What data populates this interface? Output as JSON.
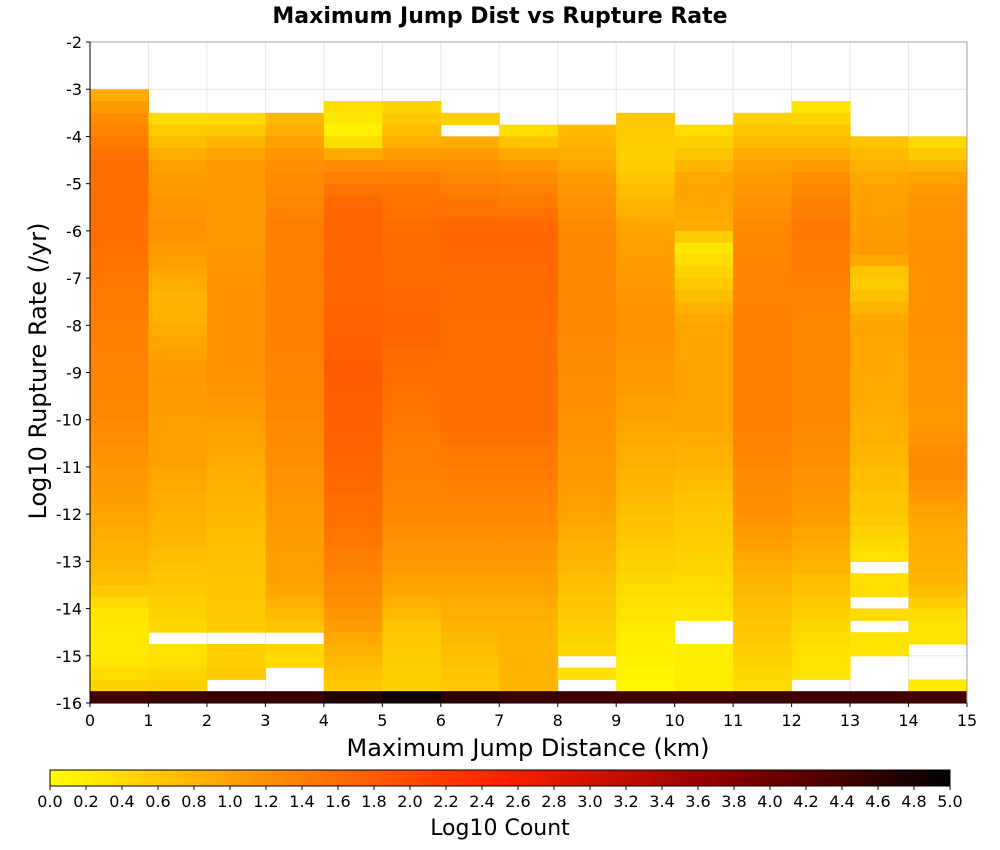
{
  "chart_data": {
    "type": "heatmap",
    "title": "Maximum Jump Dist vs Rupture Rate",
    "xlabel": "Maximum Jump Distance (km)",
    "ylabel": "Log10 Rupture Rate (/yr)",
    "xlim": [
      0,
      15
    ],
    "ylim": [
      -16,
      -2
    ],
    "x_ticks": [
      "0",
      "1",
      "2",
      "3",
      "4",
      "5",
      "6",
      "7",
      "8",
      "9",
      "10",
      "11",
      "12",
      "13",
      "14",
      "15"
    ],
    "y_ticks": [
      "-2",
      "-3",
      "-4",
      "-5",
      "-6",
      "-7",
      "-8",
      "-9",
      "-10",
      "-11",
      "-12",
      "-13",
      "-14",
      "-15",
      "-16"
    ],
    "x_bin_width": 1,
    "y_bin_width": 0.25,
    "grid": true,
    "colorbar": {
      "label": "Log10 Count",
      "range": [
        0,
        5
      ],
      "ticks": [
        "0.0",
        "0.2",
        "0.4",
        "0.6",
        "0.8",
        "1.0",
        "1.2",
        "1.4",
        "1.6",
        "1.8",
        "2.0",
        "2.2",
        "2.4",
        "2.6",
        "2.8",
        "3.0",
        "3.2",
        "3.4",
        "3.6",
        "3.8",
        "4.0",
        "4.2",
        "4.4",
        "4.6",
        "4.8",
        "5.0"
      ],
      "colors": [
        "#ffff00",
        "#ff8c00",
        "#ff2000",
        "#8b0000",
        "#000000"
      ]
    },
    "x_bins": [
      0.5,
      1.5,
      2.5,
      3.5,
      4.5,
      5.5,
      6.5,
      7.5,
      8.5,
      9.5,
      10.5,
      11.5,
      12.5,
      13.5,
      14.5
    ],
    "columns": [
      {
        "x": 0.5,
        "y_top": -3.0,
        "profile": [
          [
            -3.0,
            0.8
          ],
          [
            -3.5,
            1.2
          ],
          [
            -4.5,
            1.6
          ],
          [
            -6.0,
            1.6
          ],
          [
            -8.0,
            1.4
          ],
          [
            -10.0,
            1.3
          ],
          [
            -12.0,
            1.0
          ],
          [
            -13.5,
            0.7
          ],
          [
            -14.0,
            0.3
          ],
          [
            -15.0,
            0.2
          ],
          [
            -15.9,
            0.6
          ]
        ],
        "gaps": []
      },
      {
        "x": 1.5,
        "y_top": -3.5,
        "profile": [
          [
            -3.5,
            0.3
          ],
          [
            -4.5,
            1.0
          ],
          [
            -6.0,
            1.2
          ],
          [
            -7.5,
            0.8
          ],
          [
            -9.0,
            1.1
          ],
          [
            -11.0,
            1.0
          ],
          [
            -12.5,
            0.8
          ],
          [
            -14.0,
            0.5
          ],
          [
            -15.0,
            0.3
          ],
          [
            -15.5,
            0.5
          ]
        ],
        "gaps": [
          [
            -14.75,
            -14.5
          ],
          [
            -16.0,
            -15.75
          ]
        ]
      },
      {
        "x": 2.5,
        "y_top": -3.5,
        "profile": [
          [
            -3.5,
            0.3
          ],
          [
            -4.5,
            1.1
          ],
          [
            -6.0,
            1.1
          ],
          [
            -7.5,
            1.2
          ],
          [
            -9.0,
            1.2
          ],
          [
            -11.0,
            0.9
          ],
          [
            -12.5,
            0.7
          ],
          [
            -14.0,
            0.6
          ],
          [
            -15.0,
            0.5
          ],
          [
            -15.5,
            0.6
          ]
        ],
        "gaps": [
          [
            -14.75,
            -14.5
          ],
          [
            -16.0,
            -15.5
          ]
        ]
      },
      {
        "x": 3.5,
        "y_top": -3.5,
        "profile": [
          [
            -3.5,
            0.7
          ],
          [
            -4.5,
            1.2
          ],
          [
            -6.0,
            1.4
          ],
          [
            -8.0,
            1.4
          ],
          [
            -10.0,
            1.3
          ],
          [
            -12.0,
            1.1
          ],
          [
            -13.5,
            1.0
          ],
          [
            -14.5,
            0.6
          ],
          [
            -15.0,
            0.4
          ],
          [
            -15.9,
            0.3
          ]
        ],
        "gaps": [
          [
            -14.75,
            -14.5
          ],
          [
            -15.75,
            -15.25
          ]
        ]
      },
      {
        "x": 4.5,
        "y_top": -3.25,
        "profile": [
          [
            -3.25,
            0.4
          ],
          [
            -4.0,
            0.1
          ],
          [
            -4.5,
            1.2
          ],
          [
            -5.5,
            1.7
          ],
          [
            -7.5,
            1.7
          ],
          [
            -9.0,
            1.8
          ],
          [
            -11.0,
            1.7
          ],
          [
            -12.5,
            1.5
          ],
          [
            -14.0,
            1.2
          ],
          [
            -15.0,
            0.8
          ],
          [
            -15.9,
            0.5
          ]
        ],
        "gaps": []
      },
      {
        "x": 5.5,
        "y_top": -3.25,
        "profile": [
          [
            -3.25,
            0.4
          ],
          [
            -4.0,
            0.8
          ],
          [
            -5.0,
            1.5
          ],
          [
            -6.0,
            1.6
          ],
          [
            -8.0,
            1.7
          ],
          [
            -10.0,
            1.5
          ],
          [
            -12.0,
            1.3
          ],
          [
            -13.5,
            1.0
          ],
          [
            -14.5,
            0.6
          ],
          [
            -15.5,
            0.5
          ]
        ],
        "gaps": []
      },
      {
        "x": 6.5,
        "y_top": -3.5,
        "profile": [
          [
            -3.5,
            0.4
          ],
          [
            -4.5,
            1.2
          ],
          [
            -6.0,
            1.7
          ],
          [
            -8.0,
            1.6
          ],
          [
            -10.0,
            1.6
          ],
          [
            -12.0,
            1.3
          ],
          [
            -13.5,
            1.0
          ],
          [
            -14.5,
            0.8
          ],
          [
            -15.5,
            0.6
          ]
        ],
        "gaps": [
          [
            -4.0,
            -3.75
          ]
        ]
      },
      {
        "x": 7.5,
        "y_top": -3.75,
        "profile": [
          [
            -3.75,
            0.2
          ],
          [
            -4.5,
            1.1
          ],
          [
            -6.0,
            1.7
          ],
          [
            -8.0,
            1.6
          ],
          [
            -10.0,
            1.6
          ],
          [
            -12.0,
            1.3
          ],
          [
            -13.5,
            1.0
          ],
          [
            -14.5,
            0.8
          ],
          [
            -15.5,
            0.8
          ]
        ],
        "gaps": []
      },
      {
        "x": 8.5,
        "y_top": -3.75,
        "profile": [
          [
            -3.75,
            0.7
          ],
          [
            -5.0,
            1.1
          ],
          [
            -6.0,
            1.3
          ],
          [
            -8.0,
            1.3
          ],
          [
            -10.0,
            1.2
          ],
          [
            -12.0,
            1.0
          ],
          [
            -13.5,
            0.7
          ],
          [
            -14.5,
            0.5
          ],
          [
            -15.5,
            0.3
          ]
        ],
        "gaps": [
          [
            -15.25,
            -15.0
          ],
          [
            -16.0,
            -15.5
          ]
        ]
      },
      {
        "x": 9.5,
        "y_top": -3.5,
        "profile": [
          [
            -3.5,
            0.6
          ],
          [
            -4.5,
            0.5
          ],
          [
            -6.0,
            1.0
          ],
          [
            -8.0,
            1.2
          ],
          [
            -10.0,
            1.0
          ],
          [
            -12.0,
            0.7
          ],
          [
            -13.5,
            0.4
          ],
          [
            -14.5,
            0.2
          ],
          [
            -15.5,
            0.1
          ]
        ],
        "gaps": []
      },
      {
        "x": 10.5,
        "y_top": -3.75,
        "profile": [
          [
            -3.75,
            0.3
          ],
          [
            -5.0,
            1.0
          ],
          [
            -6.0,
            0.9
          ],
          [
            -6.25,
            0.2
          ],
          [
            -8.0,
            1.0
          ],
          [
            -10.0,
            1.0
          ],
          [
            -12.0,
            0.6
          ],
          [
            -13.5,
            0.4
          ],
          [
            -14.5,
            0.2
          ],
          [
            -15.5,
            0.2
          ]
        ],
        "gaps": [
          [
            -14.75,
            -14.25
          ],
          [
            -16.0,
            -15.75
          ]
        ]
      },
      {
        "x": 11.5,
        "y_top": -3.5,
        "profile": [
          [
            -3.5,
            0.4
          ],
          [
            -4.5,
            1.0
          ],
          [
            -6.0,
            1.3
          ],
          [
            -8.0,
            1.4
          ],
          [
            -10.0,
            1.4
          ],
          [
            -12.0,
            1.2
          ],
          [
            -13.5,
            0.8
          ],
          [
            -14.5,
            0.6
          ],
          [
            -15.5,
            0.4
          ]
        ],
        "gaps": []
      },
      {
        "x": 12.5,
        "y_top": -3.25,
        "profile": [
          [
            -3.25,
            0.2
          ],
          [
            -4.0,
            0.7
          ],
          [
            -5.0,
            1.3
          ],
          [
            -6.0,
            1.5
          ],
          [
            -8.0,
            1.3
          ],
          [
            -10.0,
            1.3
          ],
          [
            -12.0,
            1.1
          ],
          [
            -13.5,
            0.7
          ],
          [
            -14.5,
            0.4
          ],
          [
            -15.25,
            0.3
          ]
        ],
        "gaps": [
          [
            -16.0,
            -15.5
          ]
        ]
      },
      {
        "x": 13.5,
        "y_top": -4.0,
        "profile": [
          [
            -4.0,
            0.6
          ],
          [
            -5.0,
            1.0
          ],
          [
            -6.5,
            1.1
          ],
          [
            -7.0,
            0.5
          ],
          [
            -8.0,
            1.0
          ],
          [
            -10.0,
            0.9
          ],
          [
            -12.0,
            0.6
          ],
          [
            -13.0,
            0.3
          ],
          [
            -14.0,
            0.4
          ],
          [
            -14.75,
            0.3
          ]
        ],
        "gaps": [
          [
            -13.25,
            -13.0
          ],
          [
            -14.0,
            -13.75
          ],
          [
            -14.5,
            -14.25
          ],
          [
            -16.0,
            -15.0
          ]
        ]
      },
      {
        "x": 14.5,
        "y_top": -4.0,
        "profile": [
          [
            -4.0,
            0.3
          ],
          [
            -5.0,
            1.1
          ],
          [
            -6.0,
            1.2
          ],
          [
            -8.0,
            1.2
          ],
          [
            -10.0,
            1.1
          ],
          [
            -11.0,
            1.3
          ],
          [
            -12.0,
            1.0
          ],
          [
            -13.5,
            0.8
          ],
          [
            -14.25,
            0.3
          ],
          [
            -15.0,
            0.3
          ],
          [
            -15.75,
            0.2
          ]
        ],
        "gaps": [
          [
            -15.5,
            -14.75
          ]
        ]
      }
    ],
    "bottom_row": {
      "y": -15.875,
      "values": [
        4.4,
        4.5,
        4.5,
        4.5,
        4.7,
        4.9,
        4.6,
        4.5,
        4.4,
        4.4,
        4.4,
        4.5,
        4.4,
        4.4,
        4.4
      ]
    }
  }
}
